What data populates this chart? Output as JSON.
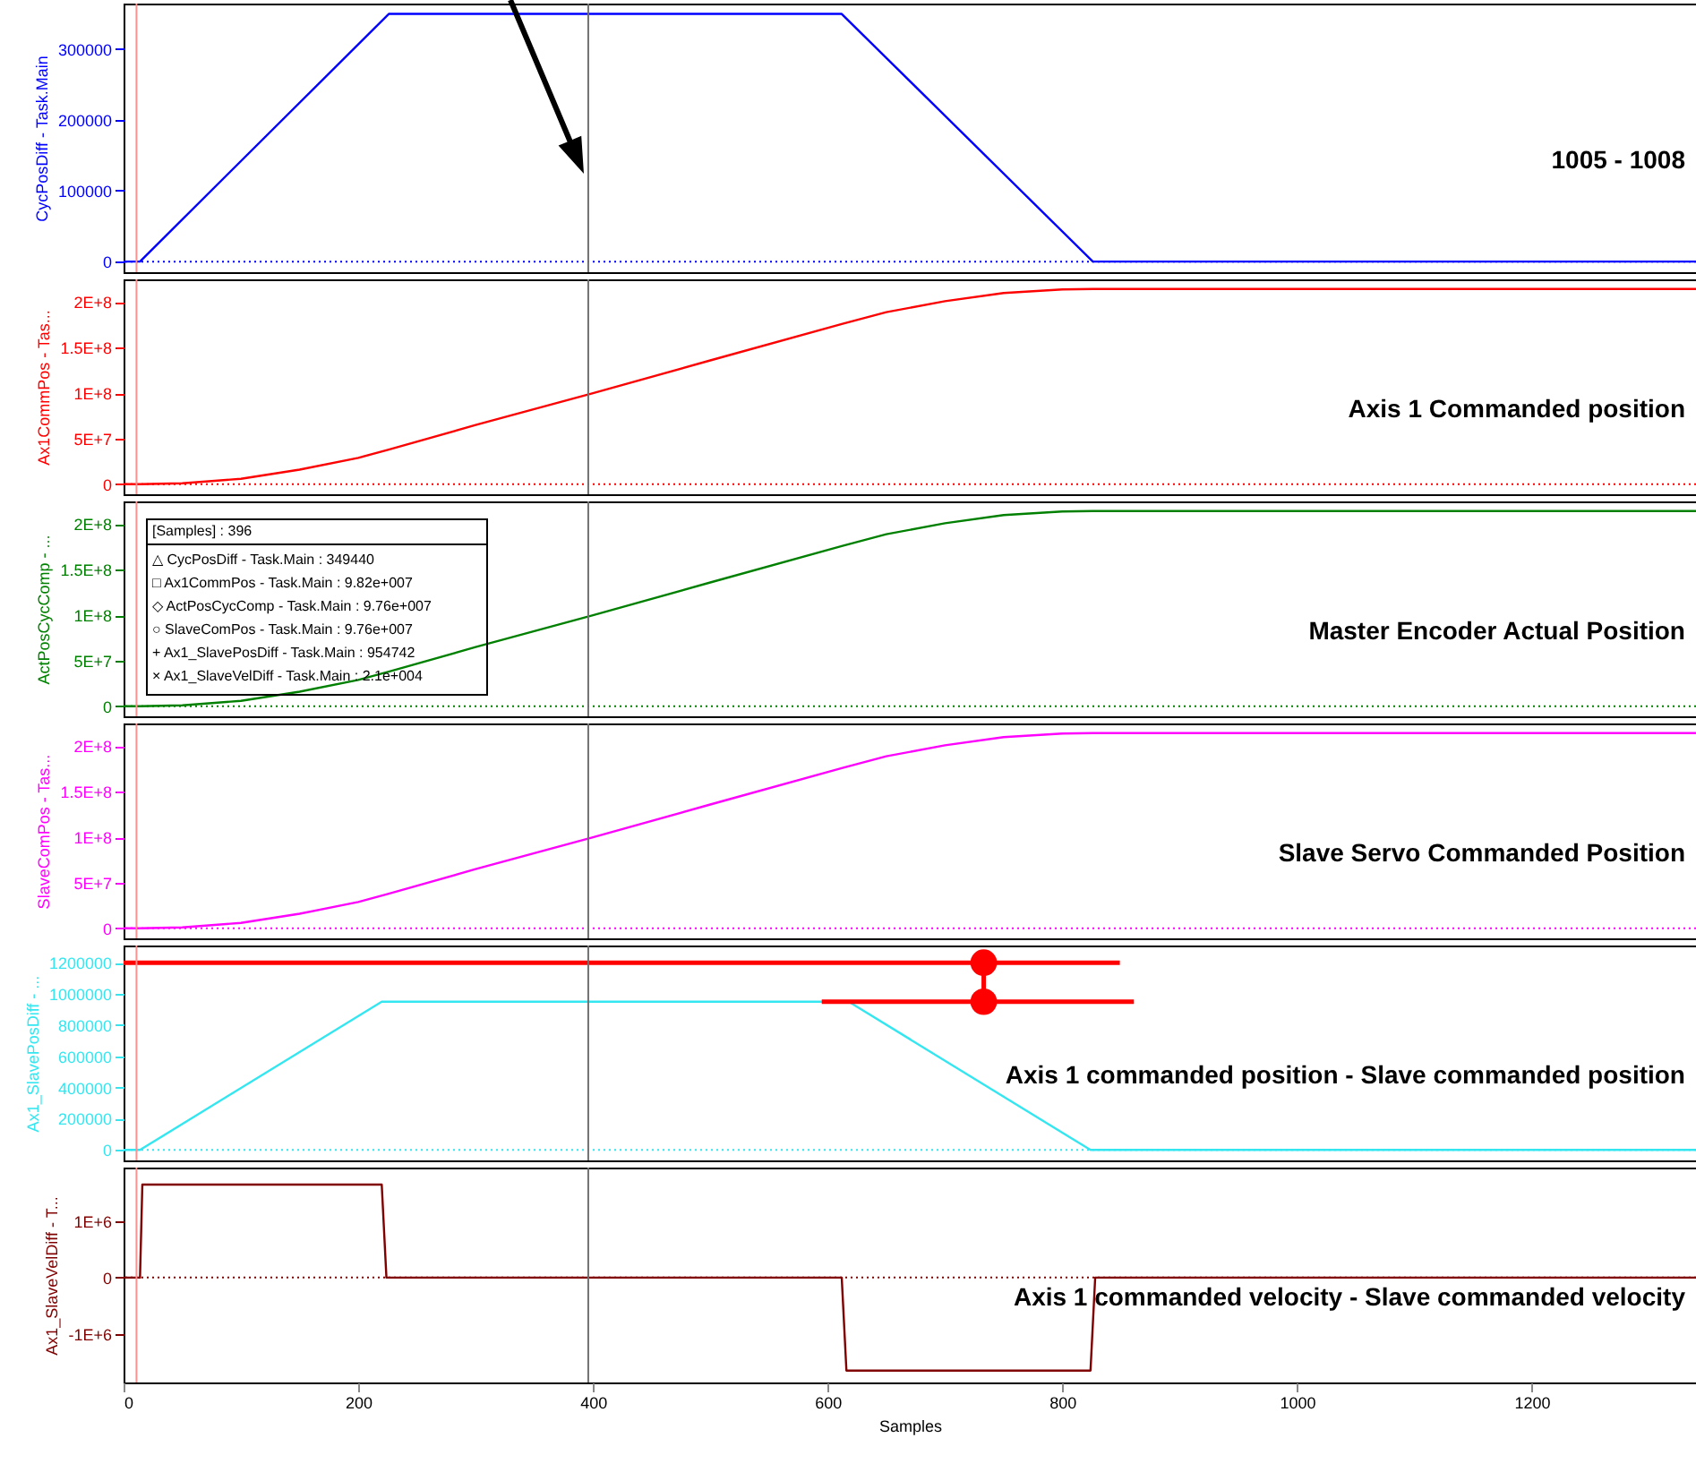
{
  "chart_data": [
    {
      "type": "line",
      "ylabel": "CycPosDiff - Task.Main",
      "x": [
        0,
        14,
        226,
        612,
        826,
        1340
      ],
      "xlim": [
        0,
        1340
      ],
      "xticks": [
        0,
        200,
        400,
        600,
        800,
        1000,
        1200
      ],
      "ylim": [
        -15000,
        364000
      ],
      "yticks": [
        0,
        100000,
        200000,
        300000
      ],
      "tick_labels": "y",
      "series": [
        {
          "color": "#0000ff",
          "values": [
            0,
            0,
            349440,
            349440,
            0,
            0
          ]
        }
      ],
      "ref_lines": [
        {
          "axis": "y",
          "value": 0,
          "color": "#0000ff",
          "line_style": "dotted"
        },
        {
          "axis": "x",
          "value": 11,
          "color": "#ff9090"
        },
        {
          "axis": "x",
          "value": 396,
          "color": "#707070"
        }
      ],
      "annotations": [
        "1005 - 1008"
      ]
    },
    {
      "type": "line",
      "ylabel": "Ax1CommPos - Tas...",
      "x": [
        0,
        14,
        50,
        100,
        150,
        200,
        226,
        300,
        400,
        500,
        612,
        650,
        700,
        750,
        800,
        826,
        1340
      ],
      "xlim": [
        0,
        1340
      ],
      "xticks": [
        0,
        200,
        400,
        600,
        800,
        1000,
        1200
      ],
      "ylim": [
        -11000000,
        225000000
      ],
      "yticks": [
        0,
        {
          "value": 50000000,
          "label": "5E+7"
        },
        {
          "value": 100000000,
          "label": "1E+8"
        },
        {
          "value": 150000000,
          "label": "1.5E+8"
        },
        {
          "value": 200000000,
          "label": "2E+8"
        }
      ],
      "tick_labels": "y",
      "series": [
        {
          "color": "#ff0000",
          "values": [
            0,
            0,
            1000000,
            6000000,
            16000000,
            29000000,
            38000000,
            65000000,
            100000000,
            136000000,
            176000000,
            189000000,
            201000000,
            210000000,
            214000000,
            214500000,
            214500000
          ]
        }
      ],
      "ref_lines": [
        {
          "axis": "y",
          "value": 0,
          "color": "#ff0000",
          "line_style": "dotted"
        },
        {
          "axis": "x",
          "value": 11,
          "color": "#ff9090"
        },
        {
          "axis": "x",
          "value": 396,
          "color": "#707070"
        }
      ],
      "annotations": [
        "Axis 1 Commanded position"
      ]
    },
    {
      "type": "line",
      "ylabel": "ActPosCycComp - ...",
      "x": [
        0,
        14,
        50,
        100,
        150,
        200,
        226,
        300,
        400,
        500,
        612,
        650,
        700,
        750,
        800,
        826,
        1340
      ],
      "xlim": [
        0,
        1340
      ],
      "xticks": [
        0,
        200,
        400,
        600,
        800,
        1000,
        1200
      ],
      "ylim": [
        -11000000,
        225000000
      ],
      "yticks": [
        0,
        {
          "value": 50000000,
          "label": "5E+7"
        },
        {
          "value": 100000000,
          "label": "1E+8"
        },
        {
          "value": 150000000,
          "label": "1.5E+8"
        },
        {
          "value": 200000000,
          "label": "2E+8"
        }
      ],
      "tick_labels": "y",
      "series": [
        {
          "color": "#008000",
          "values": [
            0,
            0,
            1000000,
            6000000,
            16000000,
            29000000,
            38000000,
            65000000,
            100000000,
            136000000,
            176000000,
            189000000,
            201000000,
            210000000,
            214000000,
            214500000,
            214500000
          ]
        }
      ],
      "ref_lines": [
        {
          "axis": "y",
          "value": 0,
          "color": "#008000",
          "line_style": "dotted"
        },
        {
          "axis": "x",
          "value": 11,
          "color": "#ff9090"
        },
        {
          "axis": "x",
          "value": 396,
          "color": "#707070"
        }
      ],
      "annotations": [
        "[Samples] : 396",
        "△ CycPosDiff - Task.Main : 349440",
        "□ Ax1CommPos - Task.Main : 9.82e+007",
        "◇ ActPosCycComp - Task.Main : 9.76e+007",
        "○ SlaveComPos - Task.Main : 9.76e+007",
        "+ Ax1_SlavePosDiff - Task.Main : 954742",
        "× Ax1_SlaveVelDiff - Task.Main : 2.1e+004",
        "Master Encoder Actual Position"
      ]
    },
    {
      "type": "line",
      "ylabel": "SlaveComPos - Tas...",
      "x": [
        0,
        14,
        50,
        100,
        150,
        200,
        226,
        300,
        400,
        500,
        612,
        650,
        700,
        750,
        800,
        826,
        1340
      ],
      "xlim": [
        0,
        1340
      ],
      "xticks": [
        0,
        200,
        400,
        600,
        800,
        1000,
        1200
      ],
      "ylim": [
        -11000000,
        225000000
      ],
      "yticks": [
        0,
        {
          "value": 50000000,
          "label": "5E+7"
        },
        {
          "value": 100000000,
          "label": "1E+8"
        },
        {
          "value": 150000000,
          "label": "1.5E+8"
        },
        {
          "value": 200000000,
          "label": "2E+8"
        }
      ],
      "tick_labels": "y",
      "series": [
        {
          "color": "#ff00ff",
          "values": [
            0,
            0,
            1000000,
            6000000,
            16000000,
            29000000,
            38000000,
            65000000,
            100000000,
            136000000,
            176000000,
            189000000,
            201000000,
            210000000,
            214000000,
            214500000,
            214500000
          ]
        }
      ],
      "ref_lines": [
        {
          "axis": "y",
          "value": 0,
          "color": "#ff00ff",
          "line_style": "dotted"
        },
        {
          "axis": "x",
          "value": 11,
          "color": "#ff9090"
        },
        {
          "axis": "x",
          "value": 396,
          "color": "#707070"
        }
      ],
      "annotations": [
        "Slave Servo Commanded Position"
      ]
    },
    {
      "type": "line",
      "ylabel": "Ax1_SlavePosDiff - ...",
      "x": [
        0,
        14,
        220,
        618,
        824,
        1340
      ],
      "xlim": [
        0,
        1340
      ],
      "xticks": [
        0,
        200,
        400,
        600,
        800,
        1000,
        1200
      ],
      "ylim": [
        -67000,
        1310000
      ],
      "yticks": [
        0,
        200000,
        400000,
        600000,
        800000,
        1000000,
        1200000
      ],
      "tick_labels": "y",
      "series": [
        {
          "color": "#33e6f0",
          "values": [
            0,
            0,
            950000,
            950000,
            0,
            0
          ]
        },
        {
          "type": "line",
          "color": "#ff0000",
          "x": [
            0,
            849
          ],
          "values": [
            1200000,
            1200000
          ]
        },
        {
          "type": "line",
          "color": "#ff0000",
          "x": [
            595,
            861
          ],
          "values": [
            950000,
            950000
          ]
        },
        {
          "type": "line",
          "color": "#ff0000",
          "x": [
            733,
            733
          ],
          "values": [
            1200000,
            950000
          ],
          "marker": "circle"
        }
      ],
      "ref_lines": [
        {
          "axis": "y",
          "value": 0,
          "color": "#33e6f0",
          "line_style": "dotted"
        },
        {
          "axis": "x",
          "value": 11,
          "color": "#ff9090"
        },
        {
          "axis": "x",
          "value": 396,
          "color": "#707070"
        }
      ],
      "annotations": [
        "Axis 1 commanded position - Slave commanded position"
      ]
    },
    {
      "type": "line",
      "ylabel": "Ax1_SlaveVelDiff - T...",
      "xlabel": "Samples",
      "x": [
        0,
        14,
        16,
        220,
        224,
        612,
        616,
        824,
        828,
        1340
      ],
      "xlim": [
        0,
        1340
      ],
      "xticks": [
        0,
        200,
        400,
        600,
        800,
        1000,
        1200
      ],
      "ylim": [
        -1850000,
        1940000
      ],
      "yticks": [
        {
          "value": -1000000,
          "label": "-1E+6"
        },
        0,
        {
          "value": 1000000,
          "label": "1E+6"
        }
      ],
      "series": [
        {
          "color": "#800000",
          "values": [
            0,
            0,
            1640000,
            1640000,
            0,
            0,
            -1640000,
            -1640000,
            0,
            0
          ]
        }
      ],
      "ref_lines": [
        {
          "axis": "y",
          "value": 0,
          "color": "#800000",
          "line_style": "dotted"
        },
        {
          "axis": "x",
          "value": 11,
          "color": "#ff9090"
        },
        {
          "axis": "x",
          "value": 396,
          "color": "#707070"
        }
      ],
      "annotations": [
        "Axis 1 commanded velocity - Slave commanded velocity"
      ]
    }
  ]
}
